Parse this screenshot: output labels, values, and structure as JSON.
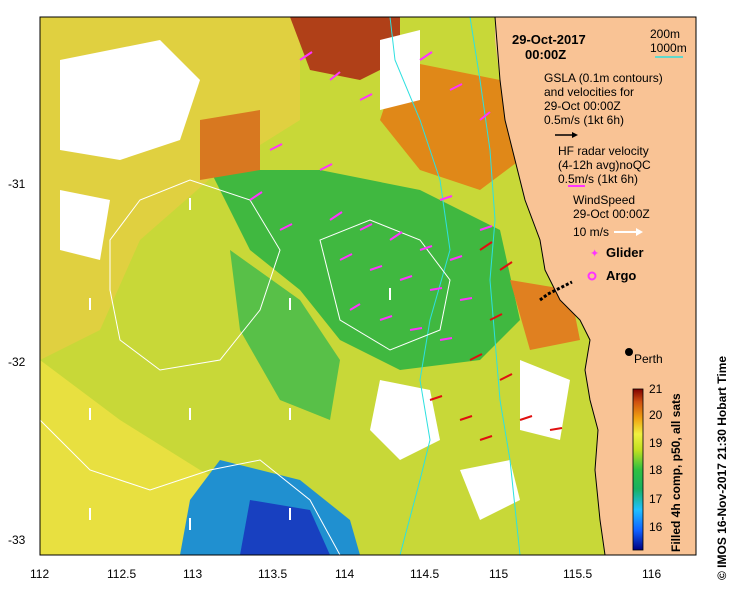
{
  "header": {
    "date": "29-Oct-2017",
    "time": "00:00Z"
  },
  "scale_legend": {
    "contour_200": "200m",
    "contour_1000": "1000m"
  },
  "legend": {
    "gsla_line1": "GSLA (0.1m contours)",
    "gsla_line2": "and velocities for",
    "gsla_line3": "29-Oct 00:00Z",
    "gsla_scale": "0.5m/s (1kt 6h)",
    "hf_line1": "HF radar velocity",
    "hf_line2": "(4-12h avg)noQC",
    "hf_scale": "0.5m/s (1kt 6h)",
    "wind_line1": "WindSpeed",
    "wind_line2": "29-Oct 00:00Z",
    "wind_scale": "10 m/s",
    "glider": "Glider",
    "argo": "Argo"
  },
  "city": "Perth",
  "colorbar": {
    "label": "Filled 4h comp, p50, all sats",
    "ticks": [
      "21",
      "20",
      "19",
      "18",
      "17",
      "16"
    ]
  },
  "side_credit": "©  IMOS 16-Nov-2017 21:30 Hobart Time",
  "x_axis_ticks": [
    "112",
    "112.5",
    "113",
    "113.5",
    "114",
    "114.5",
    "115",
    "115.5",
    "116"
  ],
  "y_axis_ticks": [
    "-31",
    "-32",
    "-33"
  ],
  "colors": {
    "land": "#f9c395",
    "gsla_arrow": "#000000",
    "hf_arrow": "#ff33ff",
    "wind_arrow": "#ffffff",
    "red_vector": "#e01010",
    "isobath": "#2ee0e0",
    "contour": "#ffffff"
  }
}
